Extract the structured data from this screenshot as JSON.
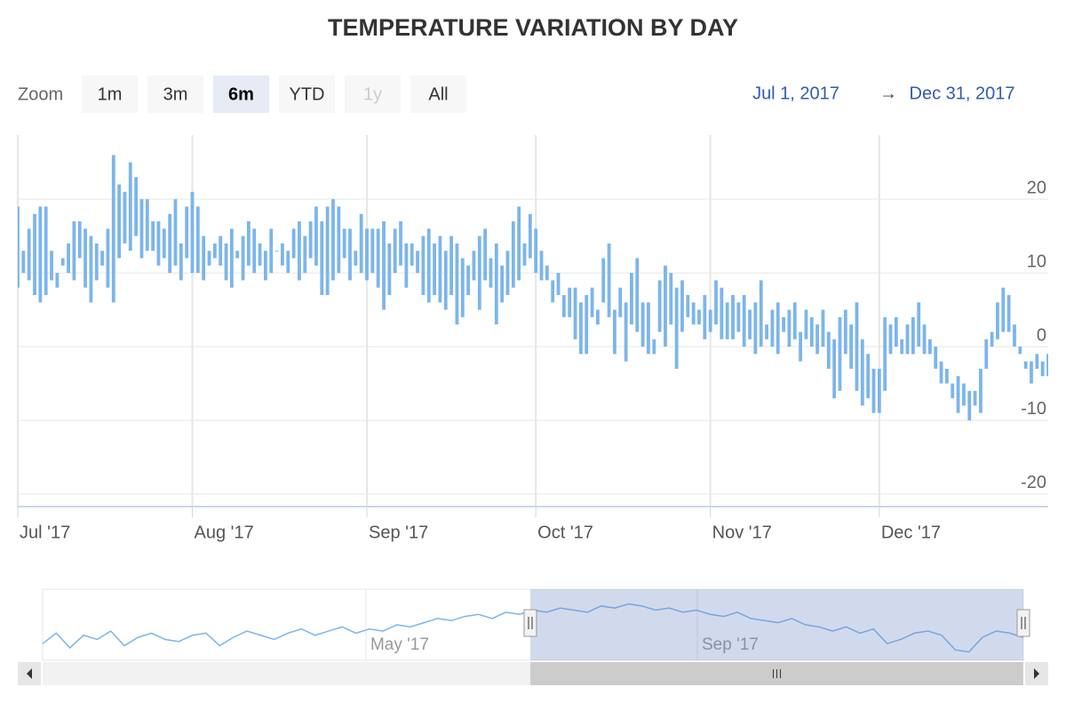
{
  "chart_data": {
    "type": "columnrange",
    "title": "TEMPERATURE VARIATION BY DAY",
    "range_selector": {
      "label": "Zoom",
      "buttons": [
        "1m",
        "3m",
        "6m",
        "YTD",
        "1y",
        "All"
      ],
      "selected": 2,
      "disabled": [
        4
      ],
      "from": "Jul 1, 2017",
      "arrow": "→",
      "to": "Dec 31, 2017"
    },
    "xlim": [
      0,
      183
    ],
    "xticks": [
      {
        "value": 0,
        "label": "Jul '17"
      },
      {
        "value": 31,
        "label": "Aug '17"
      },
      {
        "value": 62,
        "label": "Sep '17"
      },
      {
        "value": 92,
        "label": "Oct '17"
      },
      {
        "value": 123,
        "label": "Nov '17"
      },
      {
        "value": 153,
        "label": "Dec '17"
      }
    ],
    "ylim": [
      -21.7,
      28.7
    ],
    "yticks": [
      -20,
      -10,
      0,
      10,
      20
    ],
    "grid": true,
    "series": [
      {
        "color": "#7cb5ec",
        "low": [
          8,
          10,
          9,
          7,
          6,
          7,
          9,
          8,
          11,
          10,
          9,
          12,
          8,
          6,
          9,
          11,
          8,
          6,
          12,
          14,
          13,
          15,
          12,
          13,
          13,
          11,
          12,
          10,
          11,
          9,
          12,
          10,
          10,
          9,
          11,
          12,
          11,
          9,
          8,
          12,
          9,
          11,
          10,
          11,
          9,
          10,
          13,
          11,
          10,
          12,
          9,
          10,
          12,
          11,
          7,
          7,
          9,
          10,
          12,
          9,
          11,
          10,
          9,
          10,
          8,
          5,
          7,
          10,
          11,
          8,
          11,
          10,
          7,
          6,
          7,
          6,
          5,
          7,
          3,
          4,
          7,
          9,
          5,
          9,
          8,
          3,
          6,
          7,
          8,
          9,
          11,
          12,
          10,
          9,
          9,
          6,
          7,
          4,
          4,
          1,
          -1,
          -1,
          4,
          3,
          6,
          4,
          -1,
          4,
          -2,
          3,
          2,
          0,
          -1,
          -1,
          2,
          0,
          3,
          -3,
          2,
          4,
          3,
          3,
          1,
          2,
          3,
          1,
          1,
          1,
          2,
          0,
          1,
          -1,
          0,
          1,
          0,
          -1,
          2,
          0,
          1,
          -2,
          1,
          0,
          -1,
          0,
          -3,
          -7,
          -6,
          -1,
          -3,
          -6,
          -8,
          -7,
          -9,
          -9,
          -6,
          -1,
          0,
          -1,
          -1,
          -1,
          0,
          -1,
          -1,
          -3,
          -5,
          -5,
          -7,
          -9,
          -8,
          -10,
          -8,
          -9,
          -3,
          0,
          1,
          2,
          2,
          0,
          -1,
          -3,
          -5,
          -3,
          -4,
          -4
        ],
        "high": [
          19,
          13,
          16,
          18,
          19,
          19,
          13,
          10,
          12,
          14,
          17,
          17,
          16,
          15,
          14,
          13,
          16,
          26,
          22,
          21,
          25,
          23,
          20,
          20,
          17,
          17,
          16,
          18,
          20,
          14,
          19,
          21,
          19,
          15,
          13,
          14,
          15,
          14,
          16,
          13,
          15,
          17,
          16,
          14,
          13,
          16,
          13,
          14,
          13,
          16,
          17,
          15,
          17,
          19,
          17,
          19,
          20,
          19,
          16,
          16,
          13,
          18,
          16,
          16,
          16,
          17,
          14,
          16,
          17,
          14,
          14,
          13,
          15,
          16,
          14,
          15,
          13,
          15,
          14,
          12,
          11,
          13,
          15,
          16,
          12,
          14,
          11,
          13,
          17,
          19,
          14,
          18,
          16,
          13,
          11,
          9,
          10,
          7,
          8,
          8,
          6,
          7,
          8,
          5,
          12,
          14,
          5,
          8,
          6,
          10,
          12,
          6,
          6,
          1,
          9,
          11,
          10,
          8,
          9,
          7,
          6,
          5,
          7,
          5,
          9,
          8,
          6,
          7,
          6,
          7,
          5,
          6,
          9,
          3,
          5,
          6,
          4,
          5,
          6,
          2,
          5,
          4,
          3,
          5,
          2,
          1,
          4,
          5,
          3,
          6,
          1,
          -1,
          -3,
          -3,
          4,
          3,
          4,
          1,
          3,
          4,
          6,
          3,
          1,
          0,
          -2,
          -3,
          -5,
          -4,
          -5,
          -6,
          -6,
          -3,
          1,
          2,
          6,
          8,
          7,
          3,
          0,
          -2,
          -2,
          -1,
          -2,
          -1
        ]
      }
    ],
    "navigator": {
      "color": "#7cb5ec",
      "xlim": [
        0,
        364
      ],
      "ylim": [
        -10,
        24
      ],
      "xticks": [
        {
          "value": 120,
          "label": "May '17"
        },
        {
          "value": 243,
          "label": "Sep '17"
        }
      ],
      "selection": [
        181,
        364
      ],
      "values": [
        -2,
        3,
        -4,
        2,
        0,
        4,
        -3,
        1,
        3,
        0,
        -1,
        2,
        3,
        -3,
        1,
        4,
        2,
        0,
        3,
        5,
        2,
        4,
        6,
        3,
        5,
        4,
        7,
        6,
        8,
        10,
        9,
        11,
        12,
        10,
        13,
        12,
        14,
        13,
        15,
        14,
        13,
        16,
        15,
        17,
        16,
        14,
        15,
        13,
        14,
        12,
        11,
        13,
        10,
        9,
        8,
        10,
        7,
        6,
        4,
        6,
        3,
        5,
        -2,
        0,
        3,
        4,
        2,
        -5,
        -6,
        1,
        4,
        3,
        1
      ]
    }
  }
}
